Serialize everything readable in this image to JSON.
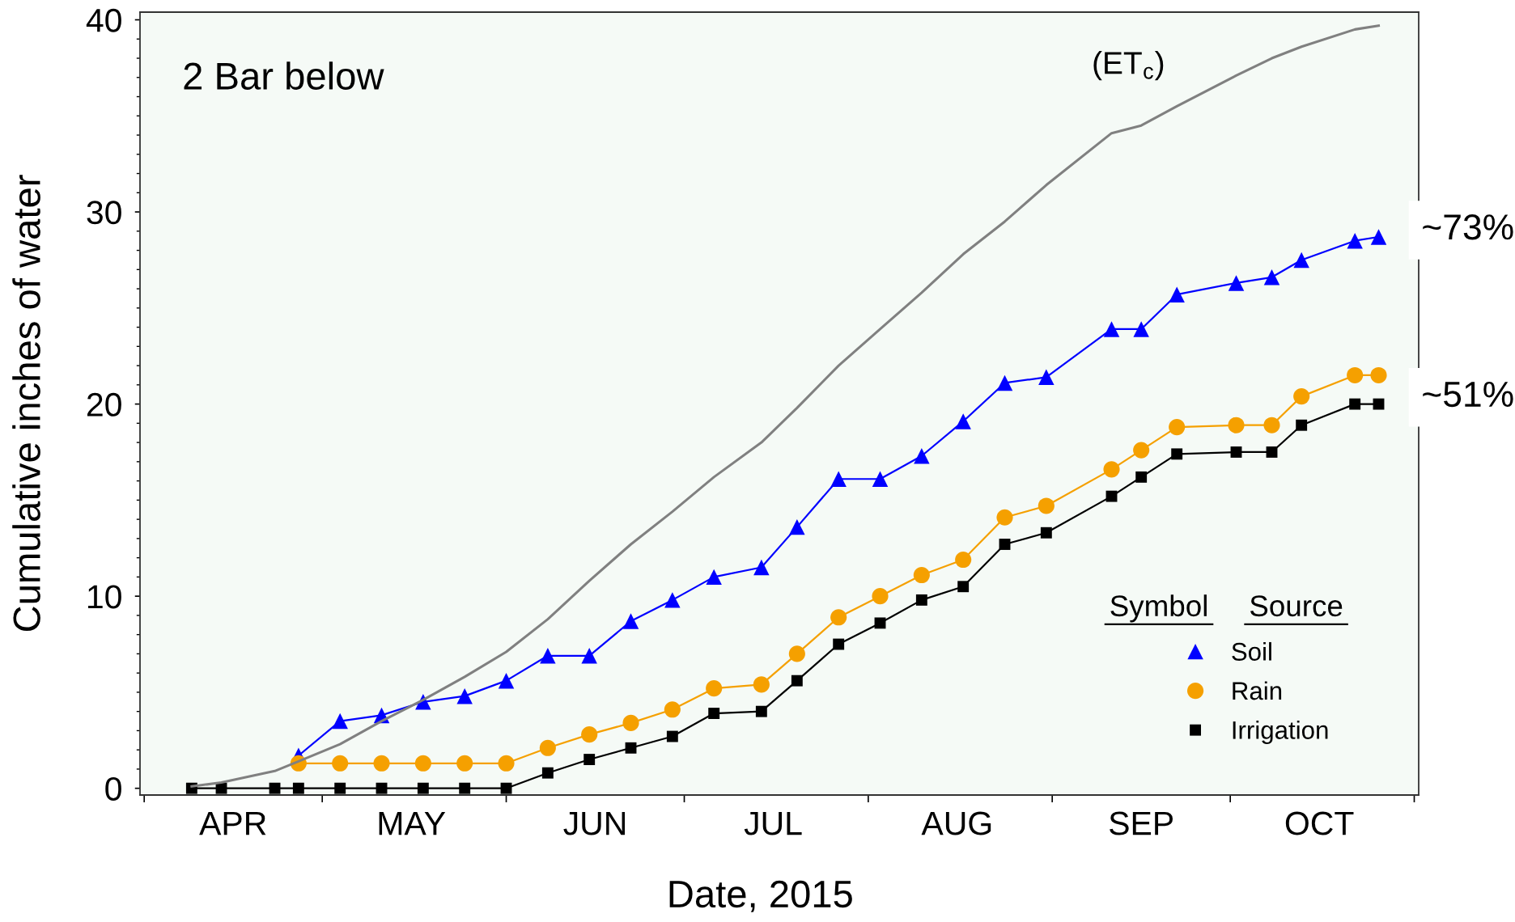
{
  "chart_data": {
    "type": "line",
    "xlabel": "Date, 2015",
    "ylabel": "Cumulative inches of water",
    "legend_title": "Symbol Source",
    "annotations": [
      "2 Bar below",
      {
        "text": "~73%",
        "x": "2015-10-26",
        "y": 28.7
      },
      {
        "text": "~51%",
        "x": "2015-10-26",
        "y": 20.0
      }
    ],
    "series": [
      {
        "name": "Soil",
        "color": "#0000ff",
        "marker": "triangle",
        "x": [
          "2015-04-27",
          "2015-05-04",
          "2015-05-11",
          "2015-05-18",
          "2015-05-25",
          "2015-06-01",
          "2015-06-08",
          "2015-06-15",
          "2015-06-22",
          "2015-06-29",
          "2015-07-06",
          "2015-07-14",
          "2015-07-20",
          "2015-07-27",
          "2015-08-03",
          "2015-08-10",
          "2015-08-17",
          "2015-08-24",
          "2015-08-31",
          "2015-09-11",
          "2015-09-16",
          "2015-09-22",
          "2015-10-02",
          "2015-10-08",
          "2015-10-13",
          "2015-10-22",
          "2015-10-26"
        ],
        "values": [
          1.7,
          3.5,
          3.8,
          4.5,
          4.8,
          5.6,
          6.9,
          6.9,
          8.7,
          9.8,
          11.0,
          11.5,
          13.6,
          16.1,
          16.1,
          17.3,
          19.1,
          21.1,
          21.4,
          23.9,
          23.9,
          25.7,
          26.3,
          26.6,
          27.5,
          28.5,
          28.7
        ]
      },
      {
        "name": "Rain",
        "color": "#f5a000",
        "marker": "circle",
        "x": [
          "2015-04-27",
          "2015-05-04",
          "2015-05-11",
          "2015-05-18",
          "2015-05-25",
          "2015-06-01",
          "2015-06-08",
          "2015-06-15",
          "2015-06-22",
          "2015-06-29",
          "2015-07-06",
          "2015-07-14",
          "2015-07-20",
          "2015-07-27",
          "2015-08-03",
          "2015-08-10",
          "2015-08-17",
          "2015-08-24",
          "2015-08-31",
          "2015-09-11",
          "2015-09-16",
          "2015-09-22",
          "2015-10-02",
          "2015-10-08",
          "2015-10-13",
          "2015-10-22",
          "2015-10-26"
        ],
        "values": [
          1.3,
          1.3,
          1.3,
          1.3,
          1.3,
          1.3,
          2.1,
          2.8,
          3.4,
          4.1,
          5.2,
          5.4,
          7.0,
          8.9,
          10.0,
          11.1,
          11.9,
          14.1,
          14.7,
          16.6,
          17.6,
          18.8,
          18.9,
          18.9,
          20.4,
          21.5,
          21.5
        ]
      },
      {
        "name": "Irrigation",
        "color": "#000000",
        "marker": "square",
        "x": [
          "2015-04-09",
          "2015-04-14",
          "2015-04-23",
          "2015-04-27",
          "2015-05-04",
          "2015-05-11",
          "2015-05-18",
          "2015-05-25",
          "2015-06-01",
          "2015-06-08",
          "2015-06-15",
          "2015-06-22",
          "2015-06-29",
          "2015-07-06",
          "2015-07-14",
          "2015-07-20",
          "2015-07-27",
          "2015-08-03",
          "2015-08-10",
          "2015-08-17",
          "2015-08-24",
          "2015-08-31",
          "2015-09-11",
          "2015-09-16",
          "2015-09-22",
          "2015-10-02",
          "2015-10-08",
          "2015-10-13",
          "2015-10-22",
          "2015-10-26"
        ],
        "values": [
          0,
          0,
          0,
          0,
          0,
          0,
          0,
          0,
          0,
          0.8,
          1.5,
          2.1,
          2.7,
          3.9,
          4.0,
          5.6,
          7.5,
          8.6,
          9.8,
          10.5,
          12.7,
          13.3,
          15.2,
          16.2,
          17.4,
          17.5,
          17.5,
          18.9,
          20.0,
          20.0
        ]
      },
      {
        "name": "(ET$_{c}$)",
        "color": "#808080",
        "marker": "none",
        "x": [
          "2015-04-09",
          "2015-04-14",
          "2015-04-23",
          "2015-04-27",
          "2015-05-04",
          "2015-05-11",
          "2015-05-18",
          "2015-05-25",
          "2015-06-01",
          "2015-06-08",
          "2015-06-15",
          "2015-06-22",
          "2015-06-29",
          "2015-07-06",
          "2015-07-14",
          "2015-07-20",
          "2015-07-27",
          "2015-08-03",
          "2015-08-10",
          "2015-08-17",
          "2015-08-24",
          "2015-08-31",
          "2015-09-11",
          "2015-09-16",
          "2015-09-22",
          "2015-10-02",
          "2015-10-08",
          "2015-10-13",
          "2015-10-22",
          "2015-10-26"
        ],
        "values": [
          0.1,
          0.3,
          0.9,
          1.4,
          2.3,
          3.5,
          4.6,
          5.8,
          7.1,
          8.8,
          10.8,
          12.7,
          14.4,
          16.2,
          18.0,
          19.8,
          22.0,
          23.9,
          25.8,
          27.8,
          29.5,
          31.4,
          34.1,
          34.5,
          35.5,
          37.1,
          38.0,
          38.6,
          39.5,
          39.7
        ]
      }
    ],
    "xlim": [
      "2015-03-31T07:00",
      "2015-11-01T18:00"
    ],
    "ylim": [
      -0.35,
      40.4
    ],
    "xticks": [
      {
        "value": "2015-04-01",
        "label": null
      },
      {
        "value": "2015-04-16",
        "label": "APR"
      },
      {
        "value": "2015-05-01",
        "label": null
      },
      {
        "value": "2015-05-16",
        "label": "MAY"
      },
      {
        "value": "2015-06-01",
        "label": null
      },
      {
        "value": "2015-06-16",
        "label": "JUN"
      },
      {
        "value": "2015-07-01",
        "label": null
      },
      {
        "value": "2015-07-16",
        "label": "JUL"
      },
      {
        "value": "2015-08-01",
        "label": null
      },
      {
        "value": "2015-08-16",
        "label": "AUG"
      },
      {
        "value": "2015-09-01",
        "label": null
      },
      {
        "value": "2015-09-16",
        "label": "SEP"
      },
      {
        "value": "2015-10-01",
        "label": null
      },
      {
        "value": "2015-10-16",
        "label": "OCT"
      },
      {
        "value": "2015-11-01",
        "label": null
      }
    ],
    "yticks": [
      0,
      {
        "value": 1,
        "label": null
      },
      {
        "value": 2,
        "label": null
      },
      {
        "value": 3,
        "label": null
      },
      {
        "value": 4,
        "label": null
      },
      {
        "value": 5,
        "label": null
      },
      {
        "value": 6,
        "label": null
      },
      {
        "value": 7,
        "label": null
      },
      {
        "value": 8,
        "label": null
      },
      {
        "value": 9,
        "label": null
      },
      10,
      {
        "value": 11,
        "label": null
      },
      {
        "value": 12,
        "label": null
      },
      {
        "value": 13,
        "label": null
      },
      {
        "value": 14,
        "label": null
      },
      {
        "value": 15,
        "label": null
      },
      {
        "value": 16,
        "label": null
      },
      {
        "value": 17,
        "label": null
      },
      {
        "value": 18,
        "label": null
      },
      {
        "value": 19,
        "label": null
      },
      20,
      {
        "value": 21,
        "label": null
      },
      {
        "value": 22,
        "label": null
      },
      {
        "value": 23,
        "label": null
      },
      {
        "value": 24,
        "label": null
      },
      {
        "value": 25,
        "label": null
      },
      {
        "value": 26,
        "label": null
      },
      {
        "value": 27,
        "label": null
      },
      {
        "value": 28,
        "label": null
      },
      {
        "value": 29,
        "label": null
      },
      30,
      {
        "value": 31,
        "label": null
      },
      {
        "value": 32,
        "label": null
      },
      {
        "value": 33,
        "label": null
      },
      {
        "value": 34,
        "label": null
      },
      {
        "value": 35,
        "label": null
      },
      {
        "value": 36,
        "label": null
      },
      {
        "value": 37,
        "label": null
      },
      {
        "value": 38,
        "label": null
      },
      {
        "value": 39,
        "label": null
      },
      40
    ],
    "legend": "bottom right",
    "grid": false,
    "line_style": "solid"
  }
}
